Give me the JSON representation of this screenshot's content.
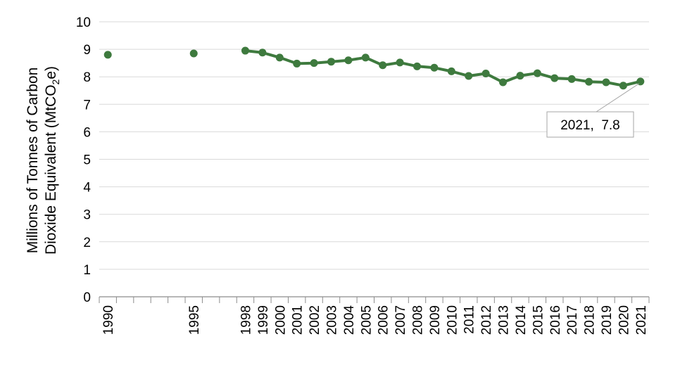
{
  "chart_data": {
    "type": "line",
    "title": "",
    "ylabel_line1": "Millions of Tonnes of Carbon",
    "ylabel_line2_pre": "Dioxide Equivalent (MtCO",
    "ylabel_sub": "2",
    "ylabel_line2_post": "e)",
    "xlabel": "",
    "ylim": [
      0,
      10
    ],
    "yticks": [
      0,
      1,
      2,
      3,
      4,
      5,
      6,
      7,
      8,
      9,
      10
    ],
    "grid": true,
    "legend": "none",
    "line_color": "#3e7a3e",
    "categories": [
      "1990",
      "",
      "",
      "",
      "",
      "1995",
      "",
      "",
      "1998",
      "1999",
      "2000",
      "2001",
      "2002",
      "2003",
      "2004",
      "2005",
      "2006",
      "2007",
      "2008",
      "2009",
      "2010",
      "2011",
      "2012",
      "2013",
      "2014",
      "2015",
      "2016",
      "2017",
      "2018",
      "2019",
      "2020",
      "2021"
    ],
    "values": [
      8.8,
      null,
      null,
      null,
      null,
      8.85,
      null,
      null,
      8.95,
      8.88,
      8.7,
      8.48,
      8.5,
      8.55,
      8.6,
      8.7,
      8.42,
      8.52,
      8.38,
      8.33,
      8.2,
      8.03,
      8.12,
      7.8,
      8.04,
      8.13,
      7.95,
      7.92,
      7.82,
      7.8,
      7.68,
      7.83
    ],
    "annotation": {
      "category": "2021",
      "text": "2021,  7.8"
    }
  }
}
